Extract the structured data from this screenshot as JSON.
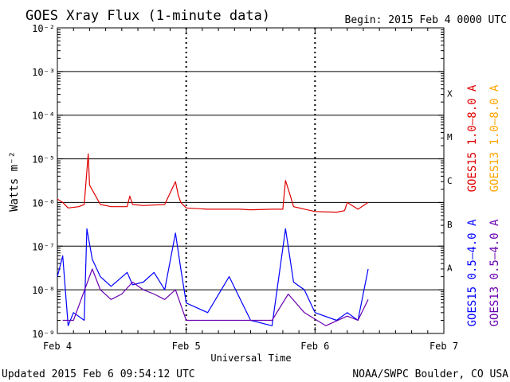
{
  "header": {
    "title": "GOES Xray Flux (1-minute data)",
    "begin": "Begin:  2015 Feb 4 0000 UTC"
  },
  "footer": {
    "updated": "Updated 2015 Feb  6 09:54:12 UTC",
    "credit": "NOAA/SWPC Boulder, CO USA"
  },
  "colors": {
    "goes15_long": "#e00000",
    "goes13_long": "#ffa500",
    "goes15_short": "#0000ff",
    "goes13_short": "#6a00b0"
  },
  "chart_data": {
    "type": "line",
    "title": "GOES Xray Flux (1-minute data)",
    "xlabel": "Universal Time",
    "ylabel": "Watts m⁻²",
    "y_scale": "log",
    "ylim": [
      1e-09,
      0.01
    ],
    "xlim": [
      "2015-02-04 00:00",
      "2015-02-07 00:00"
    ],
    "x_ticks": [
      "Feb 4",
      "Feb 5",
      "Feb 6",
      "Feb 7"
    ],
    "y_ticks": [
      "10⁻⁹",
      "10⁻⁸",
      "10⁻⁷",
      "10⁻⁶",
      "10⁻⁵",
      "10⁻⁴",
      "10⁻³",
      "10⁻²"
    ],
    "flare_classes": [
      "A",
      "B",
      "C",
      "M",
      "X"
    ],
    "grid": true,
    "legend_position": "right",
    "series": [
      {
        "name": "GOES15 1.0–8.0 A",
        "x": [
          "2015-02-04 00:00",
          "2015-02-04 01:00",
          "2015-02-04 02:00",
          "2015-02-04 04:00",
          "2015-02-04 05:00",
          "2015-02-04 05:45",
          "2015-02-04 06:00",
          "2015-02-04 07:00",
          "2015-02-04 08:00",
          "2015-02-04 10:00",
          "2015-02-04 13:00",
          "2015-02-04 13:30",
          "2015-02-04 14:00",
          "2015-02-04 16:00",
          "2015-02-04 20:00",
          "2015-02-04 22:00",
          "2015-02-04 22:30",
          "2015-02-04 23:00",
          "2015-02-05 00:00",
          "2015-02-05 04:00",
          "2015-02-05 08:00",
          "2015-02-05 10:00",
          "2015-02-05 12:00",
          "2015-02-05 16:00",
          "2015-02-05 18:00",
          "2015-02-05 18:30",
          "2015-02-05 19:30",
          "2015-02-05 20:00",
          "2015-02-06 00:00",
          "2015-02-06 04:00",
          "2015-02-06 05:30",
          "2015-02-06 06:00",
          "2015-02-06 08:00",
          "2015-02-06 09:54"
        ],
        "values": [
          1.2e-06,
          1e-06,
          7.5e-07,
          8e-07,
          9e-07,
          1.3e-05,
          2.5e-06,
          1.5e-06,
          9e-07,
          8e-07,
          8e-07,
          1.4e-06,
          9e-07,
          8.5e-07,
          9e-07,
          3e-06,
          1.5e-06,
          1e-06,
          7.5e-07,
          7e-07,
          7e-07,
          7e-07,
          6.8e-07,
          7e-07,
          7e-07,
          3.2e-06,
          1.3e-06,
          8e-07,
          6.2e-07,
          6e-07,
          6.5e-07,
          1e-06,
          7e-07,
          1e-06
        ]
      },
      {
        "name": "GOES13 1.0–8.0 A",
        "x": [],
        "values": []
      },
      {
        "name": "GOES15 0.5–4.0 A",
        "x": [
          "2015-02-04 00:00",
          "2015-02-04 01:00",
          "2015-02-04 02:00",
          "2015-02-04 03:00",
          "2015-02-04 05:00",
          "2015-02-04 05:30",
          "2015-02-04 06:30",
          "2015-02-04 08:00",
          "2015-02-04 10:00",
          "2015-02-04 13:00",
          "2015-02-04 14:00",
          "2015-02-04 16:00",
          "2015-02-04 18:00",
          "2015-02-04 20:00",
          "2015-02-04 22:00",
          "2015-02-04 23:00",
          "2015-02-05 00:00",
          "2015-02-05 04:00",
          "2015-02-05 08:00",
          "2015-02-05 12:00",
          "2015-02-05 16:00",
          "2015-02-05 18:30",
          "2015-02-05 20:00",
          "2015-02-05 22:00",
          "2015-02-06 00:00",
          "2015-02-06 04:00",
          "2015-02-06 06:00",
          "2015-02-06 08:00",
          "2015-02-06 09:54"
        ],
        "values": [
          2e-08,
          6e-08,
          1.5e-09,
          3e-09,
          2e-09,
          2.5e-07,
          5e-08,
          2e-08,
          1.2e-08,
          2.5e-08,
          1.3e-08,
          1.5e-08,
          2.5e-08,
          1e-08,
          2e-07,
          3e-08,
          5e-09,
          3e-09,
          2e-08,
          2e-09,
          1.5e-09,
          2.5e-07,
          1.5e-08,
          1e-08,
          3e-09,
          2e-09,
          3e-09,
          2e-09,
          3e-08
        ]
      },
      {
        "name": "GOES13 0.5–4.0 A",
        "x": [
          "2015-02-04 01:00",
          "2015-02-04 03:00",
          "2015-02-04 06:30",
          "2015-02-04 08:00",
          "2015-02-04 10:00",
          "2015-02-04 12:00",
          "2015-02-04 14:00",
          "2015-02-04 16:00",
          "2015-02-04 18:00",
          "2015-02-04 20:00",
          "2015-02-04 22:00",
          "2015-02-05 00:00",
          "2015-02-05 08:00",
          "2015-02-05 16:00",
          "2015-02-05 19:00",
          "2015-02-05 22:00",
          "2015-02-06 02:00",
          "2015-02-06 06:00",
          "2015-02-06 08:00",
          "2015-02-06 09:54"
        ],
        "values": [
          2e-09,
          2e-09,
          3e-08,
          1e-08,
          6e-09,
          8e-09,
          1.5e-08,
          1e-08,
          8e-09,
          6e-09,
          1e-08,
          2e-09,
          2e-09,
          2e-09,
          8e-09,
          3e-09,
          1.5e-09,
          2.5e-09,
          2e-09,
          6e-09
        ]
      }
    ]
  }
}
